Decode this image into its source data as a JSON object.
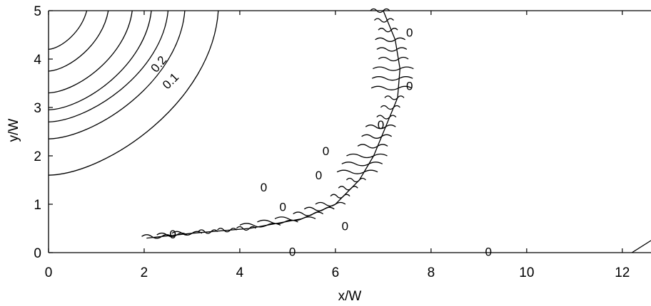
{
  "chart_data": {
    "type": "contour",
    "title": "",
    "xlabel": "x/W",
    "ylabel": "y/W",
    "xlim": [
      0,
      12.6
    ],
    "ylim": [
      0,
      5
    ],
    "x_ticks": [
      "0",
      "2",
      "4",
      "6",
      "8",
      "10",
      "12"
    ],
    "y_ticks": [
      "0",
      "1",
      "2",
      "3",
      "4",
      "5"
    ],
    "grid": false,
    "levels": [
      0,
      0.1,
      0.2
    ],
    "contour_labels": [
      {
        "text": "0.2",
        "x": 2.3,
        "y": 3.9,
        "angle": -50
      },
      {
        "text": "0.1",
        "x": 2.55,
        "y": 3.55,
        "angle": -45
      },
      {
        "text": "0",
        "x": 7.55,
        "y": 4.55,
        "angle": 0
      },
      {
        "text": "0",
        "x": 7.55,
        "y": 3.45,
        "angle": 0
      },
      {
        "text": "0",
        "x": 6.95,
        "y": 2.65,
        "angle": 0
      },
      {
        "text": "0",
        "x": 5.8,
        "y": 2.1,
        "angle": 0
      },
      {
        "text": "0",
        "x": 5.65,
        "y": 1.6,
        "angle": 0
      },
      {
        "text": "0",
        "x": 4.5,
        "y": 1.35,
        "angle": 0
      },
      {
        "text": "0",
        "x": 4.9,
        "y": 0.95,
        "angle": 0
      },
      {
        "text": "0",
        "x": 6.2,
        "y": 0.55,
        "angle": 0
      },
      {
        "text": "0",
        "x": 2.6,
        "y": 0.38,
        "angle": 0
      },
      {
        "text": "0",
        "x": 5.1,
        "y": 0.02,
        "angle": 0
      },
      {
        "text": "0",
        "x": 9.2,
        "y": 0.02,
        "angle": 0
      }
    ],
    "corner_contours": [
      {
        "y0": 4.2,
        "x1": 0.8
      },
      {
        "y0": 3.75,
        "x1": 1.25
      },
      {
        "y0": 3.3,
        "x1": 1.75
      },
      {
        "y0": 2.95,
        "x1": 2.15
      },
      {
        "y0": 2.7,
        "x1": 2.5
      },
      {
        "y0": 2.35,
        "x1": 2.85
      },
      {
        "y0": 1.6,
        "x1": 3.55
      }
    ],
    "zero_contour_front": [
      [
        7.0,
        5.0
      ],
      [
        7.25,
        4.4
      ],
      [
        7.35,
        3.8
      ],
      [
        7.3,
        3.2
      ],
      [
        7.05,
        2.6
      ],
      [
        6.8,
        2.0
      ],
      [
        6.5,
        1.5
      ],
      [
        6.0,
        1.0
      ],
      [
        5.3,
        0.7
      ],
      [
        4.2,
        0.5
      ],
      [
        3.0,
        0.4
      ],
      [
        2.05,
        0.3
      ]
    ],
    "right_edge_contour": [
      [
        12.2,
        0.0
      ],
      [
        12.6,
        0.25
      ]
    ]
  }
}
